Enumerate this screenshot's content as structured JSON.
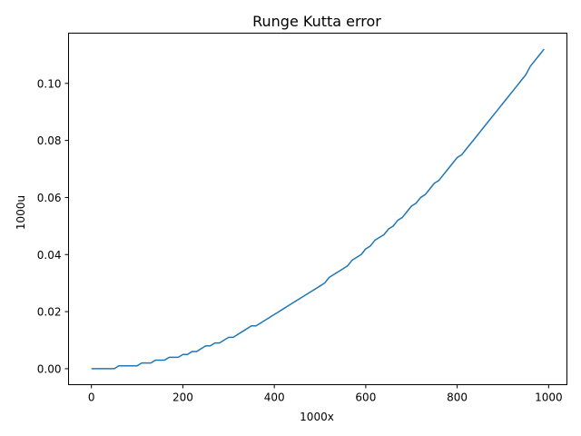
{
  "chart_data": {
    "type": "line",
    "title": "Runge Kutta error",
    "xlabel": "1000x",
    "ylabel": "1000u",
    "xlim": [
      -50,
      1040
    ],
    "ylim": [
      -0.0056,
      0.1176
    ],
    "xticks": [
      0,
      200,
      400,
      600,
      800,
      1000
    ],
    "xtick_labels": [
      "0",
      "200",
      "400",
      "600",
      "800",
      "1000"
    ],
    "yticks": [
      0.0,
      0.02,
      0.04,
      0.06,
      0.08,
      0.1
    ],
    "ytick_labels": [
      "0.00",
      "0.02",
      "0.04",
      "0.06",
      "0.08",
      "0.10"
    ],
    "grid": false,
    "series": [
      {
        "color": "#1f77b4",
        "x": [
          0,
          10,
          20,
          30,
          40,
          50,
          60,
          70,
          80,
          90,
          100,
          110,
          120,
          130,
          140,
          150,
          160,
          170,
          180,
          190,
          200,
          210,
          220,
          230,
          240,
          250,
          260,
          270,
          280,
          290,
          300,
          310,
          320,
          330,
          340,
          350,
          360,
          370,
          380,
          390,
          400,
          410,
          420,
          430,
          440,
          450,
          460,
          470,
          480,
          490,
          500,
          510,
          520,
          530,
          540,
          550,
          560,
          570,
          580,
          590,
          600,
          610,
          620,
          630,
          640,
          650,
          660,
          670,
          680,
          690,
          700,
          710,
          720,
          730,
          740,
          750,
          760,
          770,
          780,
          790,
          800,
          810,
          820,
          830,
          840,
          850,
          860,
          870,
          880,
          890,
          900,
          910,
          920,
          930,
          940,
          950,
          960,
          970,
          980,
          990
        ],
        "y": [
          0.0,
          0.0,
          0.0,
          0.0,
          0.0,
          0.0,
          0.001,
          0.001,
          0.001,
          0.001,
          0.001,
          0.002,
          0.002,
          0.002,
          0.003,
          0.003,
          0.003,
          0.004,
          0.004,
          0.004,
          0.005,
          0.005,
          0.006,
          0.006,
          0.007,
          0.008,
          0.008,
          0.009,
          0.009,
          0.01,
          0.011,
          0.011,
          0.012,
          0.013,
          0.014,
          0.015,
          0.015,
          0.016,
          0.017,
          0.018,
          0.019,
          0.02,
          0.021,
          0.022,
          0.023,
          0.024,
          0.025,
          0.026,
          0.027,
          0.028,
          0.029,
          0.03,
          0.032,
          0.033,
          0.034,
          0.035,
          0.036,
          0.038,
          0.039,
          0.04,
          0.042,
          0.043,
          0.045,
          0.046,
          0.047,
          0.049,
          0.05,
          0.052,
          0.053,
          0.055,
          0.057,
          0.058,
          0.06,
          0.061,
          0.063,
          0.065,
          0.066,
          0.068,
          0.07,
          0.072,
          0.074,
          0.075,
          0.077,
          0.079,
          0.081,
          0.083,
          0.085,
          0.087,
          0.089,
          0.091,
          0.093,
          0.095,
          0.097,
          0.099,
          0.101,
          0.103,
          0.106,
          0.108,
          0.11,
          0.112
        ]
      }
    ]
  }
}
